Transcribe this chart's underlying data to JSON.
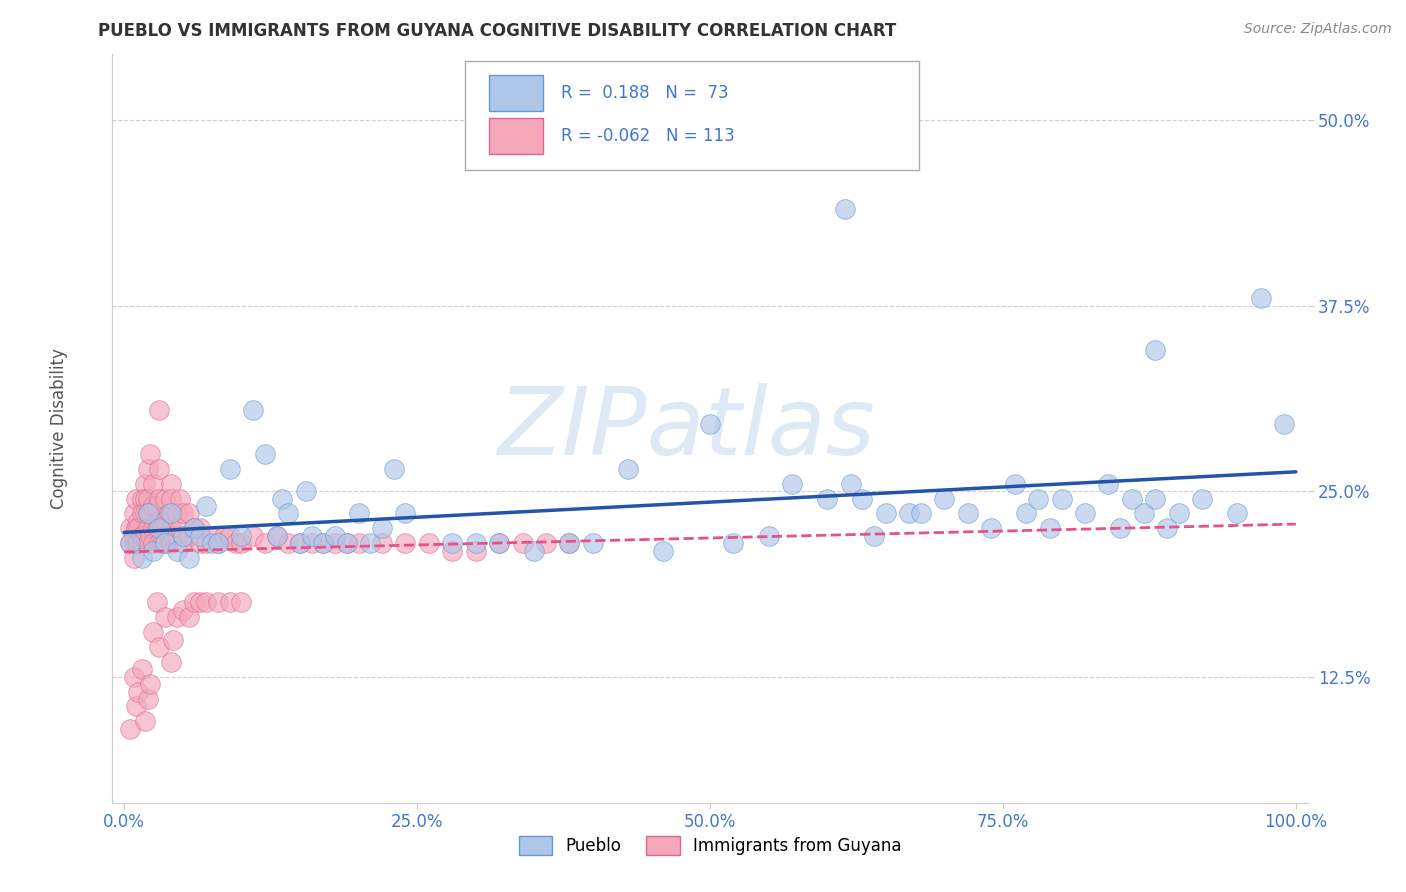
{
  "title": "PUEBLO VS IMMIGRANTS FROM GUYANA COGNITIVE DISABILITY CORRELATION CHART",
  "source": "Source: ZipAtlas.com",
  "xlabel": "",
  "ylabel": "Cognitive Disability",
  "xlim": [
    -0.01,
    1.01
  ],
  "ylim": [
    0.04,
    0.545
  ],
  "yticks": [
    0.125,
    0.25,
    0.375,
    0.5
  ],
  "ytick_labels": [
    "12.5%",
    "25.0%",
    "37.5%",
    "50.0%"
  ],
  "xticks": [
    0.0,
    0.25,
    0.5,
    0.75,
    1.0
  ],
  "xtick_labels": [
    "0.0%",
    "25.0%",
    "50.0%",
    "75.0%",
    "100.0%"
  ],
  "blue_color": "#aec6e8",
  "pink_color": "#f4a7b9",
  "blue_line_color": "#2255aa",
  "pink_line_color": "#e8508a",
  "blue_edge_color": "#6699cc",
  "pink_edge_color": "#dd6699",
  "background_color": "#ffffff",
  "grid_color": "#cccccc",
  "title_color": "#333333",
  "tick_color": "#4477cc",
  "blue_scatter": [
    [
      0.005,
      0.215
    ],
    [
      0.015,
      0.205
    ],
    [
      0.02,
      0.235
    ],
    [
      0.025,
      0.21
    ],
    [
      0.03,
      0.225
    ],
    [
      0.035,
      0.215
    ],
    [
      0.04,
      0.235
    ],
    [
      0.045,
      0.21
    ],
    [
      0.05,
      0.22
    ],
    [
      0.055,
      0.205
    ],
    [
      0.06,
      0.225
    ],
    [
      0.065,
      0.22
    ],
    [
      0.07,
      0.24
    ],
    [
      0.075,
      0.215
    ],
    [
      0.08,
      0.215
    ],
    [
      0.09,
      0.265
    ],
    [
      0.1,
      0.22
    ],
    [
      0.11,
      0.305
    ],
    [
      0.12,
      0.275
    ],
    [
      0.13,
      0.22
    ],
    [
      0.135,
      0.245
    ],
    [
      0.14,
      0.235
    ],
    [
      0.15,
      0.215
    ],
    [
      0.155,
      0.25
    ],
    [
      0.16,
      0.22
    ],
    [
      0.17,
      0.215
    ],
    [
      0.18,
      0.22
    ],
    [
      0.19,
      0.215
    ],
    [
      0.2,
      0.235
    ],
    [
      0.21,
      0.215
    ],
    [
      0.22,
      0.225
    ],
    [
      0.23,
      0.265
    ],
    [
      0.24,
      0.235
    ],
    [
      0.28,
      0.215
    ],
    [
      0.3,
      0.215
    ],
    [
      0.32,
      0.215
    ],
    [
      0.35,
      0.21
    ],
    [
      0.38,
      0.215
    ],
    [
      0.4,
      0.215
    ],
    [
      0.43,
      0.265
    ],
    [
      0.46,
      0.21
    ],
    [
      0.5,
      0.295
    ],
    [
      0.52,
      0.215
    ],
    [
      0.55,
      0.22
    ],
    [
      0.57,
      0.255
    ],
    [
      0.6,
      0.245
    ],
    [
      0.62,
      0.255
    ],
    [
      0.63,
      0.245
    ],
    [
      0.64,
      0.22
    ],
    [
      0.65,
      0.235
    ],
    [
      0.67,
      0.235
    ],
    [
      0.68,
      0.235
    ],
    [
      0.7,
      0.245
    ],
    [
      0.72,
      0.235
    ],
    [
      0.74,
      0.225
    ],
    [
      0.76,
      0.255
    ],
    [
      0.77,
      0.235
    ],
    [
      0.78,
      0.245
    ],
    [
      0.79,
      0.225
    ],
    [
      0.8,
      0.245
    ],
    [
      0.82,
      0.235
    ],
    [
      0.84,
      0.255
    ],
    [
      0.85,
      0.225
    ],
    [
      0.86,
      0.245
    ],
    [
      0.87,
      0.235
    ],
    [
      0.88,
      0.245
    ],
    [
      0.89,
      0.225
    ],
    [
      0.9,
      0.235
    ],
    [
      0.92,
      0.245
    ],
    [
      0.95,
      0.235
    ],
    [
      0.97,
      0.38
    ],
    [
      0.99,
      0.295
    ],
    [
      0.615,
      0.44
    ],
    [
      0.88,
      0.345
    ]
  ],
  "pink_scatter": [
    [
      0.005,
      0.215
    ],
    [
      0.005,
      0.225
    ],
    [
      0.008,
      0.235
    ],
    [
      0.008,
      0.215
    ],
    [
      0.008,
      0.22
    ],
    [
      0.008,
      0.205
    ],
    [
      0.01,
      0.225
    ],
    [
      0.01,
      0.245
    ],
    [
      0.01,
      0.215
    ],
    [
      0.01,
      0.225
    ],
    [
      0.012,
      0.23
    ],
    [
      0.012,
      0.215
    ],
    [
      0.012,
      0.225
    ],
    [
      0.015,
      0.245
    ],
    [
      0.015,
      0.235
    ],
    [
      0.015,
      0.22
    ],
    [
      0.015,
      0.215
    ],
    [
      0.015,
      0.22
    ],
    [
      0.018,
      0.255
    ],
    [
      0.018,
      0.245
    ],
    [
      0.018,
      0.235
    ],
    [
      0.018,
      0.22
    ],
    [
      0.02,
      0.265
    ],
    [
      0.02,
      0.245
    ],
    [
      0.02,
      0.235
    ],
    [
      0.02,
      0.225
    ],
    [
      0.02,
      0.215
    ],
    [
      0.022,
      0.235
    ],
    [
      0.022,
      0.22
    ],
    [
      0.022,
      0.275
    ],
    [
      0.025,
      0.255
    ],
    [
      0.025,
      0.24
    ],
    [
      0.025,
      0.225
    ],
    [
      0.025,
      0.215
    ],
    [
      0.028,
      0.24
    ],
    [
      0.028,
      0.225
    ],
    [
      0.03,
      0.265
    ],
    [
      0.03,
      0.245
    ],
    [
      0.03,
      0.23
    ],
    [
      0.03,
      0.215
    ],
    [
      0.03,
      0.305
    ],
    [
      0.032,
      0.215
    ],
    [
      0.032,
      0.225
    ],
    [
      0.035,
      0.245
    ],
    [
      0.035,
      0.23
    ],
    [
      0.035,
      0.215
    ],
    [
      0.038,
      0.235
    ],
    [
      0.038,
      0.22
    ],
    [
      0.04,
      0.255
    ],
    [
      0.04,
      0.245
    ],
    [
      0.04,
      0.225
    ],
    [
      0.04,
      0.215
    ],
    [
      0.042,
      0.22
    ],
    [
      0.045,
      0.235
    ],
    [
      0.045,
      0.22
    ],
    [
      0.048,
      0.245
    ],
    [
      0.048,
      0.225
    ],
    [
      0.05,
      0.235
    ],
    [
      0.05,
      0.215
    ],
    [
      0.055,
      0.235
    ],
    [
      0.055,
      0.22
    ],
    [
      0.06,
      0.225
    ],
    [
      0.065,
      0.215
    ],
    [
      0.065,
      0.225
    ],
    [
      0.07,
      0.215
    ],
    [
      0.075,
      0.22
    ],
    [
      0.08,
      0.215
    ],
    [
      0.085,
      0.22
    ],
    [
      0.09,
      0.22
    ],
    [
      0.095,
      0.215
    ],
    [
      0.1,
      0.215
    ],
    [
      0.11,
      0.22
    ],
    [
      0.12,
      0.215
    ],
    [
      0.13,
      0.22
    ],
    [
      0.14,
      0.215
    ],
    [
      0.15,
      0.215
    ],
    [
      0.16,
      0.215
    ],
    [
      0.17,
      0.215
    ],
    [
      0.18,
      0.215
    ],
    [
      0.19,
      0.215
    ],
    [
      0.2,
      0.215
    ],
    [
      0.22,
      0.215
    ],
    [
      0.24,
      0.215
    ],
    [
      0.26,
      0.215
    ],
    [
      0.28,
      0.21
    ],
    [
      0.3,
      0.21
    ],
    [
      0.32,
      0.215
    ],
    [
      0.34,
      0.215
    ],
    [
      0.36,
      0.215
    ],
    [
      0.38,
      0.215
    ],
    [
      0.005,
      0.09
    ],
    [
      0.008,
      0.125
    ],
    [
      0.01,
      0.105
    ],
    [
      0.012,
      0.115
    ],
    [
      0.015,
      0.13
    ],
    [
      0.018,
      0.095
    ],
    [
      0.02,
      0.11
    ],
    [
      0.022,
      0.12
    ],
    [
      0.025,
      0.155
    ],
    [
      0.028,
      0.175
    ],
    [
      0.03,
      0.145
    ],
    [
      0.035,
      0.165
    ],
    [
      0.04,
      0.135
    ],
    [
      0.042,
      0.15
    ],
    [
      0.045,
      0.165
    ],
    [
      0.05,
      0.17
    ],
    [
      0.055,
      0.165
    ],
    [
      0.06,
      0.175
    ],
    [
      0.065,
      0.175
    ],
    [
      0.07,
      0.175
    ],
    [
      0.08,
      0.175
    ],
    [
      0.09,
      0.175
    ],
    [
      0.1,
      0.175
    ]
  ],
  "watermark_text": "ZIPatlas",
  "watermark_color": "#c5d8ef",
  "legend_label_blue": "Pueblo",
  "legend_label_pink": "Immigrants from Guyana"
}
